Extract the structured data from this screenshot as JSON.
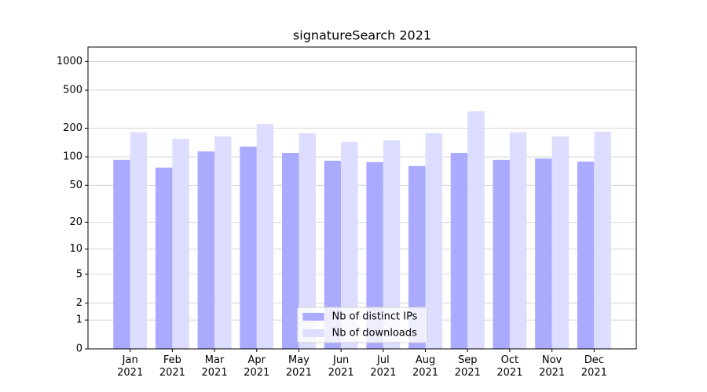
{
  "chart_data": {
    "type": "bar",
    "title": "signatureSearch 2021",
    "categories": [
      "Jan\n2021",
      "Feb\n2021",
      "Mar\n2021",
      "Apr\n2021",
      "May\n2021",
      "Jun\n2021",
      "Jul\n2021",
      "Aug\n2021",
      "Sep\n2021",
      "Oct\n2021",
      "Nov\n2021",
      "Dec\n2021"
    ],
    "series": [
      {
        "name": "Nb of distinct IPs",
        "color": "#aaaaff",
        "values": [
          93,
          77,
          114,
          128,
          110,
          91,
          88,
          80,
          110,
          93,
          96,
          89
        ]
      },
      {
        "name": "Nb of downloads",
        "color": "#ddddff",
        "values": [
          181,
          155,
          164,
          222,
          177,
          144,
          149,
          177,
          301,
          181,
          164,
          184
        ]
      }
    ],
    "yscale": "log1p",
    "ylim": [
      0,
      1412
    ],
    "yticks": [
      0,
      1,
      2,
      5,
      10,
      20,
      50,
      100,
      200,
      500,
      1000
    ],
    "grid": true,
    "legend": "lower center"
  }
}
